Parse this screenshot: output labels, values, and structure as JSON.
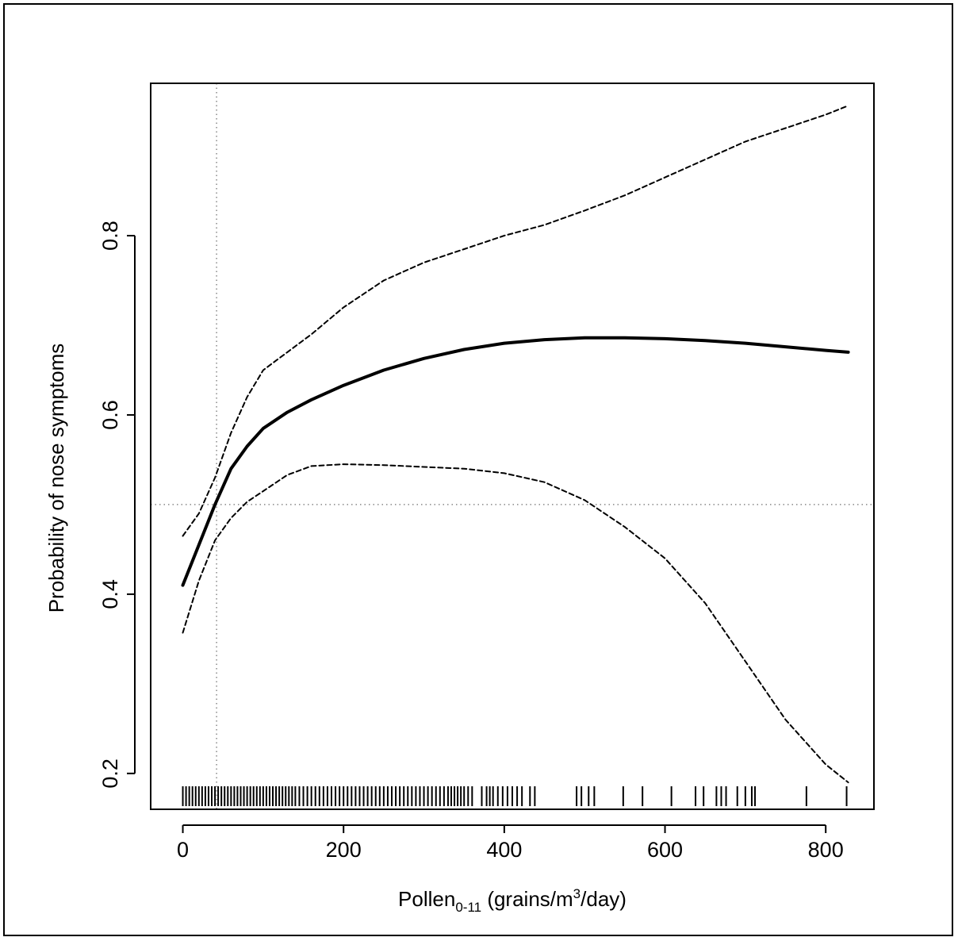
{
  "chart_data": {
    "type": "line",
    "xlabel": {
      "main": "Pollen",
      "subscript": "0-11",
      "unit_before_sup": " (grains/m",
      "superscript": "3",
      "unit_after_sup": "/day)"
    },
    "ylabel": "Probability of nose symptoms",
    "xlim": [
      -40,
      860
    ],
    "ylim": [
      0.16,
      0.97
    ],
    "x_ticks": [
      0,
      200,
      400,
      600,
      800
    ],
    "x_tick_labels": [
      "0",
      "200",
      "400",
      "600",
      "800"
    ],
    "y_ticks": [
      0.2,
      0.4,
      0.6,
      0.8
    ],
    "y_tick_labels": [
      "0.2",
      "0.4",
      "0.6",
      "0.8"
    ],
    "reference_lines": {
      "vertical_x": 42,
      "horizontal_y": 0.5
    },
    "series": [
      {
        "role": "estimate",
        "style": "solid",
        "x": [
          0,
          20,
          40,
          60,
          80,
          100,
          130,
          160,
          200,
          250,
          300,
          350,
          400,
          450,
          500,
          550,
          600,
          650,
          700,
          750,
          800,
          828
        ],
        "y": [
          0.41,
          0.455,
          0.5,
          0.54,
          0.565,
          0.585,
          0.603,
          0.617,
          0.633,
          0.65,
          0.663,
          0.673,
          0.68,
          0.684,
          0.686,
          0.686,
          0.685,
          0.683,
          0.68,
          0.676,
          0.672,
          0.67
        ]
      },
      {
        "role": "upper-ci",
        "style": "dashed",
        "x": [
          0,
          20,
          40,
          60,
          80,
          100,
          130,
          160,
          200,
          250,
          300,
          350,
          400,
          450,
          500,
          550,
          600,
          650,
          700,
          750,
          800,
          828
        ],
        "y": [
          0.465,
          0.49,
          0.53,
          0.58,
          0.62,
          0.65,
          0.67,
          0.69,
          0.72,
          0.75,
          0.77,
          0.785,
          0.8,
          0.812,
          0.828,
          0.845,
          0.865,
          0.885,
          0.905,
          0.92,
          0.935,
          0.945
        ]
      },
      {
        "role": "lower-ci",
        "style": "dashed",
        "x": [
          0,
          20,
          40,
          60,
          80,
          100,
          130,
          160,
          200,
          250,
          300,
          350,
          400,
          450,
          500,
          550,
          600,
          650,
          700,
          750,
          800,
          828
        ],
        "y": [
          0.357,
          0.415,
          0.46,
          0.485,
          0.503,
          0.515,
          0.533,
          0.543,
          0.545,
          0.544,
          0.542,
          0.54,
          0.535,
          0.525,
          0.505,
          0.475,
          0.44,
          0.39,
          0.325,
          0.26,
          0.21,
          0.19
        ]
      }
    ],
    "rug_x": [
      0,
      4,
      8,
      12,
      16,
      20,
      24,
      28,
      32,
      36,
      40,
      44,
      48,
      52,
      56,
      60,
      64,
      68,
      72,
      76,
      80,
      84,
      88,
      92,
      96,
      100,
      104,
      108,
      112,
      116,
      120,
      124,
      128,
      132,
      136,
      140,
      145,
      150,
      155,
      160,
      165,
      170,
      175,
      180,
      185,
      190,
      195,
      200,
      205,
      210,
      215,
      220,
      225,
      230,
      235,
      240,
      245,
      250,
      255,
      260,
      265,
      270,
      275,
      280,
      285,
      290,
      295,
      300,
      305,
      310,
      315,
      320,
      325,
      330,
      334,
      338,
      342,
      346,
      350,
      355,
      360,
      372,
      378,
      382,
      386,
      392,
      398,
      404,
      410,
      416,
      422,
      432,
      438,
      490,
      496,
      505,
      512,
      548,
      572,
      608,
      638,
      648,
      664,
      670,
      676,
      690,
      700,
      708,
      712,
      776,
      826
    ]
  }
}
